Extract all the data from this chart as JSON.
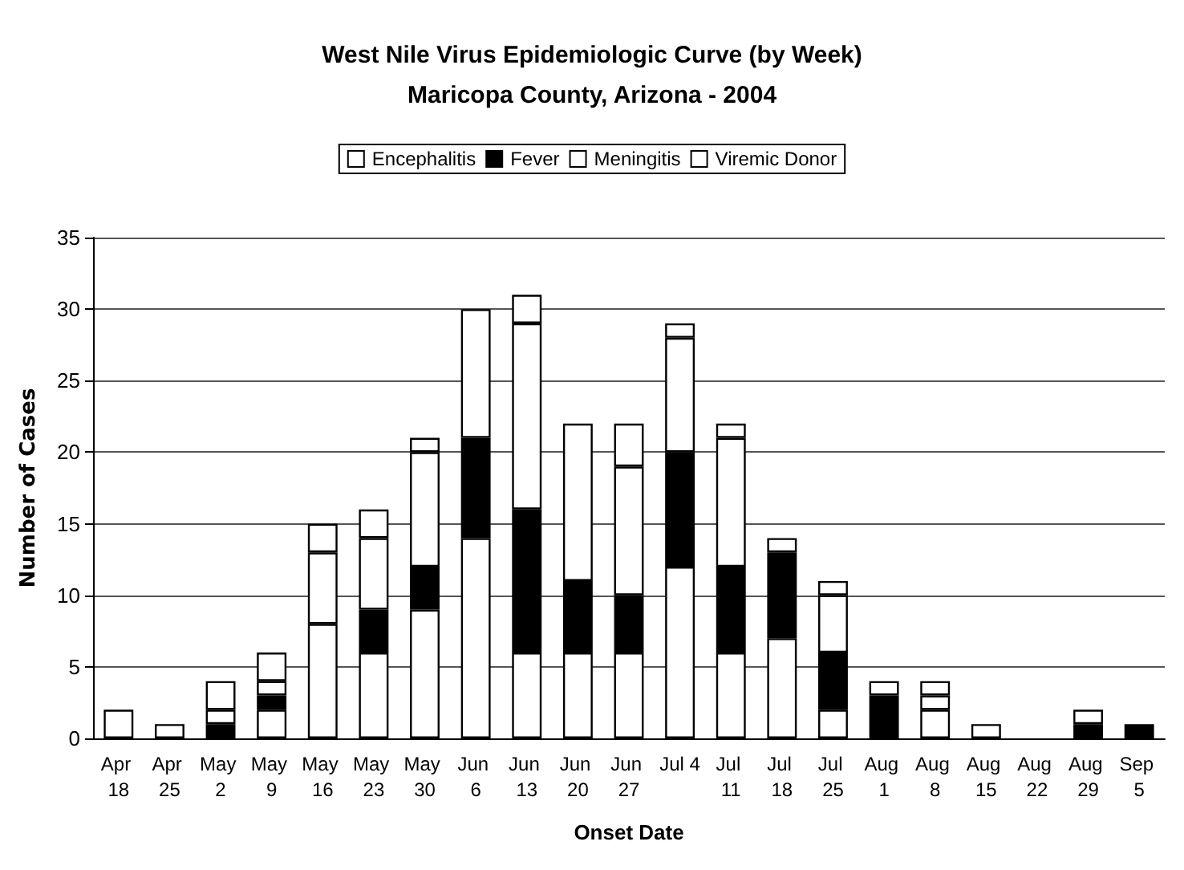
{
  "chart_data": {
    "type": "bar",
    "title": "West Nile Virus Epidemiologic Curve (by Week)",
    "subtitle": "Maricopa County, Arizona - 2004",
    "xlabel": "Onset Date",
    "ylabel": "Number of Cases",
    "categories": [
      "Apr 18",
      "Apr 25",
      "May 2",
      "May 9",
      "May 16",
      "May 23",
      "May 30",
      "Jun 6",
      "Jun 13",
      "Jun 20",
      "Jun 27",
      "Jul 4",
      "Jul 11",
      "Jul 18",
      "Jul 25",
      "Aug 1",
      "Aug 8",
      "Aug 15",
      "Aug 22",
      "Aug 29",
      "Sep 5"
    ],
    "series": [
      {
        "name": "Encephalitis",
        "color": "#ffffff",
        "values": [
          2,
          1,
          0,
          2,
          8,
          6,
          9,
          14,
          6,
          6,
          6,
          12,
          6,
          7,
          2,
          0,
          2,
          1,
          0,
          0,
          0
        ]
      },
      {
        "name": "Fever",
        "color": "#000000",
        "values": [
          0,
          0,
          1,
          1,
          0,
          3,
          3,
          7,
          10,
          5,
          4,
          8,
          6,
          6,
          4,
          3,
          0,
          0,
          0,
          1,
          1
        ]
      },
      {
        "name": "Meningitis",
        "color": "#ffffff",
        "values": [
          0,
          0,
          1,
          1,
          5,
          5,
          8,
          9,
          13,
          11,
          9,
          8,
          9,
          0,
          4,
          0,
          1,
          0,
          0,
          0,
          0
        ]
      },
      {
        "name": "Viremic Donor",
        "color": "#ffffff",
        "values": [
          0,
          0,
          2,
          2,
          2,
          2,
          1,
          0,
          2,
          0,
          3,
          1,
          1,
          1,
          1,
          1,
          1,
          0,
          0,
          1,
          0
        ]
      }
    ],
    "stacked": true,
    "ylim": [
      0,
      35
    ],
    "yticks": [
      0,
      5,
      10,
      15,
      20,
      25,
      30,
      35
    ],
    "grid": "y",
    "legend": "top"
  }
}
